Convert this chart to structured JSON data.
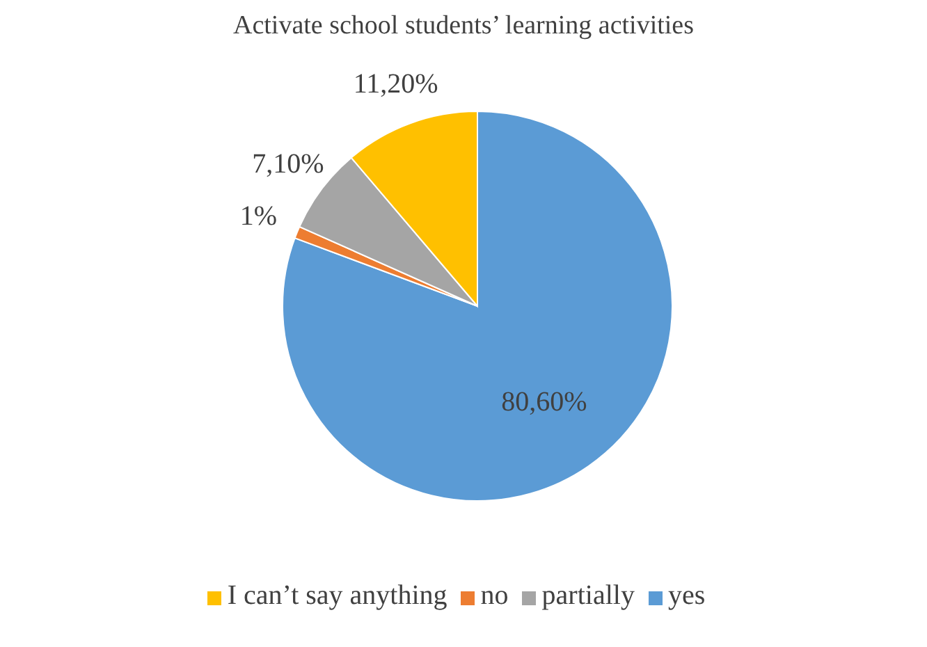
{
  "chart_data": {
    "type": "pie",
    "title": "Activate school students’ learning activities",
    "categories": [
      "yes",
      "no",
      "partially",
      "I can’t say anything"
    ],
    "values": [
      80.6,
      1,
      7.1,
      11.2
    ],
    "value_labels": [
      "80,60%",
      "1%",
      "7,10%",
      "11,20%"
    ],
    "colors": [
      "#5b9bd5",
      "#ed7d31",
      "#a5a5a5",
      "#ffc000"
    ],
    "legend": "bottom"
  }
}
